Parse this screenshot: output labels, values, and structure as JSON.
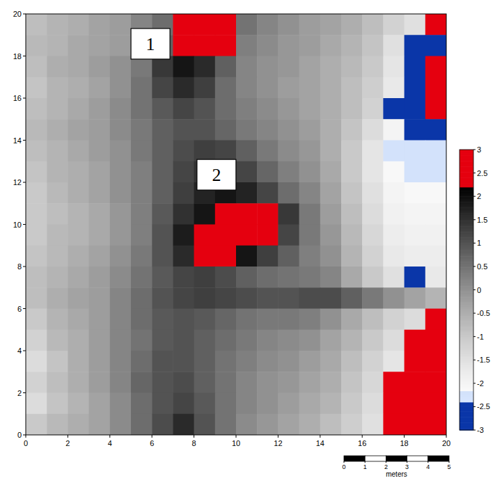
{
  "chart_data": {
    "type": "heatmap",
    "x": [
      0.5,
      1.5,
      2.5,
      3.5,
      4.5,
      5.5,
      6.5,
      7.5,
      8.5,
      9.5,
      10.5,
      11.5,
      12.5,
      13.5,
      14.5,
      15.5,
      16.5,
      17.5,
      18.5,
      19.5
    ],
    "y": [
      19.5,
      18.5,
      17.5,
      16.5,
      15.5,
      14.5,
      13.5,
      12.5,
      11.5,
      10.5,
      9.5,
      8.5,
      7.5,
      6.5,
      5.5,
      4.5,
      3.5,
      2.5,
      1.5,
      0.5
    ],
    "z": [
      [
        -0.8,
        -0.6,
        -0.5,
        -0.3,
        -0.2,
        0.2,
        0.6,
        2.8,
        2.9,
        2.7,
        0.5,
        0.2,
        0.0,
        -0.2,
        -0.3,
        -0.5,
        -0.8,
        -1.2,
        -1.5,
        2.2
      ],
      [
        -0.7,
        -0.6,
        -0.4,
        -0.3,
        -0.2,
        0.3,
        0.8,
        2.7,
        2.8,
        2.4,
        0.3,
        0.1,
        -0.1,
        -0.2,
        -0.4,
        -0.6,
        -0.9,
        -1.5,
        -3,
        -3
      ],
      [
        -0.8,
        -0.5,
        -0.4,
        -0.2,
        0.0,
        0.4,
        1.4,
        1.9,
        1.6,
        0.8,
        0.2,
        0.0,
        -0.1,
        -0.3,
        -0.5,
        -0.7,
        -1.0,
        -1.6,
        -3,
        2.2
      ],
      [
        -0.9,
        -0.6,
        -0.5,
        -0.3,
        0.0,
        0.5,
        1.2,
        1.6,
        1.3,
        0.6,
        0.2,
        0.0,
        -0.2,
        -0.3,
        -0.5,
        -0.8,
        -1.1,
        -1.7,
        -3,
        2.2
      ],
      [
        -0.8,
        -0.6,
        -0.4,
        -0.2,
        0.1,
        0.5,
        0.9,
        1.2,
        1.0,
        0.6,
        0.3,
        0.1,
        -0.1,
        -0.3,
        -0.5,
        -0.8,
        -1.2,
        -3,
        -3,
        2.2
      ],
      [
        -0.7,
        -0.5,
        -0.3,
        -0.2,
        0.1,
        0.4,
        0.8,
        1.0,
        1.0,
        0.7,
        0.4,
        0.2,
        0.0,
        -0.2,
        -0.5,
        -0.9,
        -1.4,
        -2.0,
        -3,
        -3
      ],
      [
        -0.8,
        -0.6,
        -0.4,
        -0.2,
        0.0,
        0.4,
        0.8,
        1.1,
        1.3,
        1.2,
        0.8,
        0.4,
        0.1,
        -0.1,
        -0.5,
        -1.0,
        -1.6,
        -2.2,
        -2.2,
        -2.2
      ],
      [
        -0.9,
        -0.6,
        -0.5,
        -0.3,
        0.0,
        0.3,
        0.8,
        1.2,
        1.5,
        1.6,
        1.2,
        0.7,
        0.3,
        0.0,
        -0.4,
        -1.0,
        -1.6,
        -2.1,
        -2.2,
        -2.2
      ],
      [
        -1.0,
        -0.7,
        -0.5,
        -0.3,
        0.0,
        0.3,
        0.8,
        1.3,
        1.7,
        1.9,
        1.7,
        1.2,
        0.6,
        0.2,
        -0.3,
        -0.9,
        -1.5,
        -2.0,
        -2.1,
        -2.1
      ],
      [
        -1.0,
        -0.8,
        -0.6,
        -0.4,
        -0.1,
        0.3,
        0.9,
        1.5,
        1.9,
        2.5,
        2.7,
        2.6,
        1.4,
        0.4,
        -0.2,
        -0.8,
        -1.4,
        -1.9,
        -2.0,
        -2.0
      ],
      [
        -1.0,
        -0.7,
        -0.6,
        -0.4,
        -0.1,
        0.3,
        1.0,
        1.8,
        2.7,
        2.9,
        2.8,
        2.3,
        1.2,
        0.4,
        -0.1,
        -0.7,
        -1.3,
        -1.8,
        -1.9,
        -1.9
      ],
      [
        -0.9,
        -0.7,
        -0.5,
        -0.3,
        0.0,
        0.4,
        1.0,
        1.6,
        2.6,
        2.5,
        1.9,
        1.3,
        0.8,
        0.3,
        0.0,
        -0.6,
        -1.2,
        -1.7,
        -1.8,
        -1.8
      ],
      [
        -0.8,
        -0.6,
        -0.4,
        -0.2,
        0.1,
        0.5,
        0.9,
        1.2,
        1.3,
        1.1,
        0.8,
        0.6,
        0.5,
        0.4,
        0.2,
        -0.4,
        -1.0,
        -1.5,
        -2.4,
        -1.7
      ],
      [
        -0.8,
        -0.5,
        -0.3,
        -0.2,
        0.2,
        0.6,
        1.0,
        1.2,
        1.3,
        1.2,
        1.1,
        1.0,
        1.0,
        1.1,
        1.1,
        0.8,
        0.4,
        0.0,
        -0.3,
        -0.6
      ],
      [
        -1.0,
        -0.6,
        -0.4,
        -0.2,
        0.2,
        0.6,
        0.9,
        1.0,
        0.9,
        0.7,
        0.5,
        0.4,
        0.4,
        0.3,
        0.0,
        -0.4,
        -0.8,
        -1.2,
        -1.4,
        2.2
      ],
      [
        -1.2,
        -0.7,
        -0.5,
        -0.2,
        0.2,
        0.5,
        0.9,
        1.0,
        0.8,
        0.6,
        0.4,
        0.2,
        0.1,
        0.0,
        -0.3,
        -0.6,
        -1.0,
        -1.4,
        2.2,
        2.2
      ],
      [
        -1.4,
        -0.9,
        -0.5,
        -0.2,
        0.2,
        0.6,
        1.0,
        1.0,
        0.8,
        0.5,
        0.3,
        0.1,
        0.0,
        -0.2,
        -0.4,
        -0.8,
        -1.2,
        -1.6,
        2.2,
        2.2
      ],
      [
        -1.2,
        -0.8,
        -0.5,
        -0.2,
        0.2,
        0.7,
        1.0,
        1.1,
        0.8,
        0.5,
        0.2,
        0.0,
        -0.1,
        -0.3,
        -0.5,
        -0.9,
        -1.3,
        2.2,
        2.2,
        2.2
      ],
      [
        -1.4,
        -0.9,
        -0.6,
        -0.3,
        0.1,
        0.6,
        1.0,
        1.2,
        0.9,
        0.5,
        0.2,
        0.0,
        -0.2,
        -0.4,
        -0.6,
        -1.0,
        -1.4,
        2.2,
        2.2,
        2.2
      ],
      [
        -1.0,
        -0.7,
        -0.5,
        -0.3,
        0.1,
        0.6,
        1.1,
        1.6,
        1.0,
        0.5,
        0.1,
        -0.1,
        -0.3,
        -0.5,
        -0.8,
        -1.1,
        -1.5,
        2.2,
        2.2,
        2.2
      ]
    ],
    "xlim": [
      0,
      20
    ],
    "ylim": [
      0,
      20
    ],
    "xticks": [
      0,
      2,
      4,
      6,
      8,
      10,
      12,
      14,
      16,
      18,
      20
    ],
    "yticks": [
      0,
      2,
      4,
      6,
      8,
      10,
      12,
      14,
      16,
      18,
      20
    ],
    "colorbar": {
      "range": [
        -3,
        3
      ],
      "ticks": [
        3,
        2.5,
        2,
        1.5,
        1,
        0.5,
        0,
        -0.5,
        -1,
        -1.5,
        -2,
        -2.5,
        -3
      ]
    },
    "annotations": [
      {
        "text": "1",
        "x": 5.93,
        "y": 18.58
      },
      {
        "text": "2",
        "x": 9.07,
        "y": 12.36
      }
    ],
    "scale_bar": {
      "ticks": [
        0,
        1,
        2,
        3,
        4,
        5
      ],
      "label": "meters"
    }
  }
}
